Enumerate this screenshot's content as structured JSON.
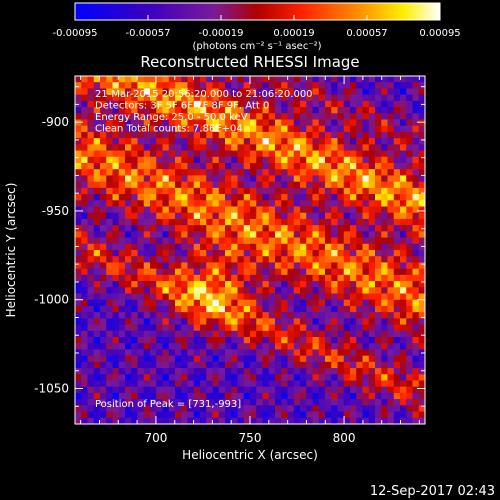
{
  "chart_data": {
    "type": "heatmap",
    "title": "Reconstructed RHESSI Image",
    "xlabel": "Heliocentric X (arcsec)",
    "ylabel": "Heliocentric Y (arcsec)",
    "xlim": [
      657,
      843
    ],
    "ylim": [
      -1070,
      -874
    ],
    "x_ticks": [
      "700",
      "750",
      "800"
    ],
    "x_tick_values": [
      700,
      750,
      800
    ],
    "y_ticks": [
      "-900",
      "-950",
      "-1000",
      "-1050"
    ],
    "y_tick_values": [
      -900,
      -950,
      -1000,
      -1050
    ],
    "colorbar": {
      "ticks": [
        "-0.00095",
        "-0.00057",
        "-0.00019",
        "0.00019",
        "0.00057",
        "0.00095"
      ],
      "tick_values": [
        -0.00095,
        -0.00057,
        -0.00019,
        0.00019,
        0.00057,
        0.00095
      ],
      "range": [
        -0.00095,
        0.00095
      ],
      "units_label": "(photons cm⁻² s⁻¹ asec⁻²)"
    },
    "annotations": [
      "21-Mar-2015 20:56:20.000 to 21:06:20.000",
      "Detectors: 3F 5F 6F 7F 8F 9F, Att 0",
      "Energy Range: 25.0 - 50.0 keV",
      "Clean     Total counts: 7.86E+04"
    ],
    "peak_label": "Position of Peak = [731,-993]",
    "peak": [
      731,
      -993
    ],
    "grid": false,
    "legend": "none"
  },
  "footer_date": "12-Sep-2017 02:43",
  "colors": {
    "background": "#000000",
    "text": "#ffffff",
    "colormap": [
      "#0000ff",
      "#3b00c0",
      "#7a1a9a",
      "#b00000",
      "#ff2000",
      "#ff9000",
      "#ffee00",
      "#ffffff"
    ]
  }
}
